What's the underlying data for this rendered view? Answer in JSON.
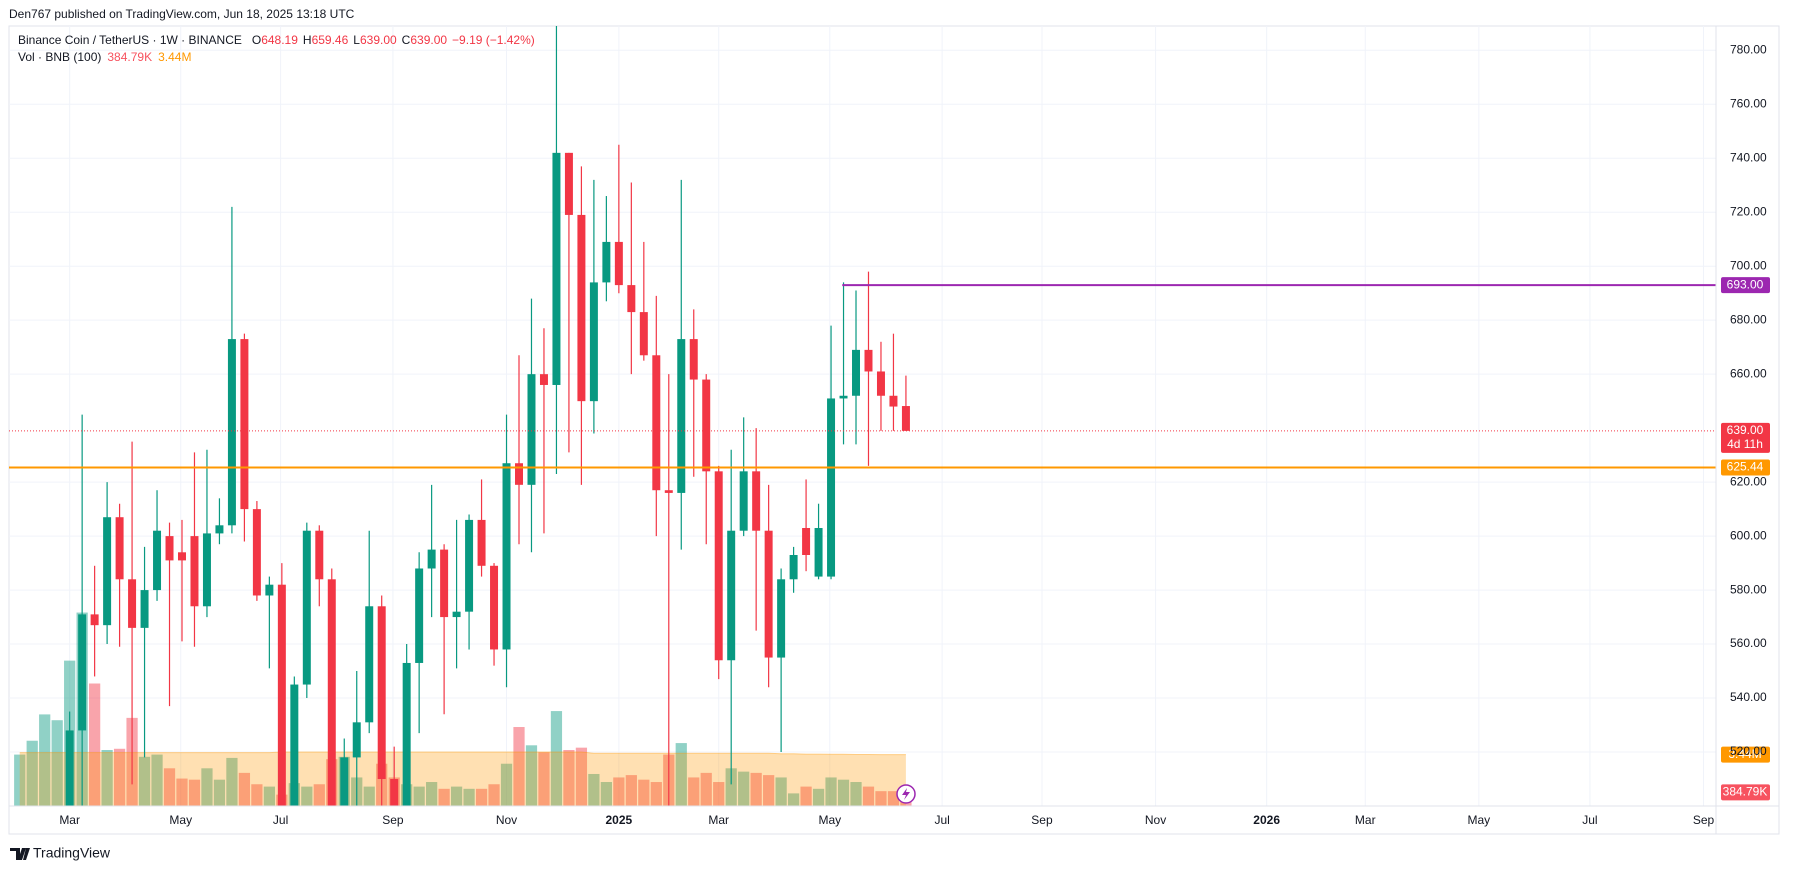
{
  "header": "Den767 published on TradingView.com, Jun 18, 2025 13:18 UTC",
  "footer": "TradingView",
  "chart_data": {
    "type": "candlestick",
    "legend": {
      "symbol": "Binance Coin / TetherUS · 1W · BINANCE",
      "ohlc_letters": [
        "O",
        "H",
        "L",
        "C"
      ],
      "ohlc_labels": [
        "648.19",
        "659.46",
        "639.00",
        "639.00"
      ],
      "change": "−9.19 (−1.42%)",
      "volume_title": "Vol · BNB (100)"
    },
    "ohlc": [
      null,
      null,
      null,
      null,
      [
        500,
        535,
        490,
        528
      ],
      [
        528,
        645,
        500,
        571
      ],
      [
        571,
        589,
        548,
        567
      ],
      [
        567,
        620,
        560,
        607
      ],
      [
        607,
        612,
        559,
        584
      ],
      [
        584,
        635,
        508,
        566
      ],
      [
        566,
        596,
        518,
        580
      ],
      [
        580,
        617,
        576,
        602
      ],
      [
        600,
        605,
        537,
        591
      ],
      [
        594,
        606,
        561,
        591
      ],
      [
        600,
        631,
        559,
        574
      ],
      [
        574,
        632,
        570,
        601
      ],
      [
        601,
        614,
        597,
        604
      ],
      [
        604,
        722,
        601,
        673
      ],
      [
        673,
        675,
        598,
        610
      ],
      [
        610,
        613,
        576,
        578
      ],
      [
        578,
        585,
        551,
        582
      ],
      [
        582,
        590,
        470,
        498
      ],
      [
        498,
        548,
        460,
        545
      ],
      [
        545,
        605,
        540,
        602
      ],
      [
        602,
        604,
        574,
        584
      ],
      [
        584,
        588,
        460,
        495
      ],
      [
        495,
        525,
        480,
        518
      ],
      [
        518,
        550,
        500,
        531
      ],
      [
        531,
        602,
        527,
        574
      ],
      [
        574,
        578,
        490,
        510
      ],
      [
        510,
        522,
        490,
        500
      ],
      [
        500,
        560,
        495,
        553
      ],
      [
        553,
        594,
        527,
        588
      ],
      [
        588,
        619,
        570,
        595
      ],
      [
        595,
        597,
        534,
        570
      ],
      [
        570,
        606,
        551,
        572
      ],
      [
        572,
        608,
        558,
        606
      ],
      [
        606,
        621,
        585,
        589
      ],
      [
        589,
        590,
        552,
        558
      ],
      [
        558,
        645,
        544,
        627
      ],
      [
        627,
        667,
        597,
        619
      ],
      [
        619,
        688,
        594,
        660
      ],
      [
        660,
        677,
        601,
        656
      ],
      [
        656,
        793,
        623,
        742
      ],
      [
        742,
        742,
        631,
        719
      ],
      [
        719,
        737,
        619,
        650
      ],
      [
        650,
        732,
        638,
        694
      ],
      [
        694,
        726,
        687,
        709
      ],
      [
        709,
        745,
        690,
        693
      ],
      [
        693,
        731,
        660,
        683
      ],
      [
        683,
        709,
        665,
        667
      ],
      [
        667,
        689,
        600,
        617
      ],
      [
        617,
        660,
        500,
        616
      ],
      [
        616,
        732,
        595,
        673
      ],
      [
        673,
        684,
        622,
        658
      ],
      [
        658,
        660,
        597,
        624
      ],
      [
        624,
        626,
        547,
        554
      ],
      [
        554,
        632,
        508,
        602
      ],
      [
        602,
        644,
        600,
        624
      ],
      [
        624,
        640,
        565,
        602
      ],
      [
        602,
        619,
        544,
        555
      ],
      [
        555,
        588,
        520,
        584
      ],
      [
        584,
        596,
        579,
        593
      ],
      [
        603,
        621,
        587,
        593
      ],
      [
        585,
        612,
        584,
        603
      ],
      [
        585,
        678,
        584,
        651
      ],
      [
        651,
        694,
        634,
        652
      ],
      [
        652,
        691,
        634,
        669
      ],
      [
        669,
        698,
        626,
        661
      ],
      [
        661,
        672,
        639,
        652
      ],
      [
        652,
        675,
        639,
        648
      ],
      [
        648.19,
        659.46,
        639,
        639
      ]
    ],
    "volume": [
      3.44,
      4.56,
      6.69,
      6.22,
      11.04,
      14.93,
      9.19,
      3.81,
      3.91,
      6.41,
      3.26,
      3.44,
      2.33,
      1.5,
      1.41,
      2.33,
      1.41,
      3.17,
      1.96,
      1.04,
      0.85,
      0.2,
      1.13,
      0.85,
      1.04,
      3.07,
      3.26,
      1.59,
      0.85,
      2.7,
      1.59,
      1.04,
      0.85,
      1.22,
      0.67,
      0.85,
      0.67,
      0.67,
      1.04,
      2.7,
      5.67,
      4.19,
      3.63,
      6.96,
      3.81,
      4.0,
      1.87,
      1.22,
      1.59,
      1.78,
      1.41,
      1.22,
      3.44,
      4.37,
      1.59,
      1.96,
      1.22,
      2.33,
      2.06,
      1.96,
      1.78,
      1.59,
      0.3,
      0.85,
      0.67,
      1.59,
      1.41,
      1.22,
      0.85,
      0.48,
      0.48,
      0.38479
    ],
    "volume_ma": [
      3.6,
      3.6,
      3.6,
      3.6,
      3.6,
      3.6,
      3.6,
      3.6,
      3.6,
      3.6,
      3.6,
      3.6,
      3.6,
      3.6,
      3.6,
      3.6,
      3.6,
      3.6,
      3.6,
      3.6,
      3.6,
      3.65,
      3.65,
      3.65,
      3.65,
      3.65,
      3.65,
      3.65,
      3.65,
      3.65,
      3.65,
      3.65,
      3.65,
      3.65,
      3.65,
      3.65,
      3.65,
      3.65,
      3.65,
      3.65,
      3.65,
      3.65,
      3.65,
      3.65,
      3.65,
      3.65,
      3.55,
      3.55,
      3.55,
      3.55,
      3.55,
      3.55,
      3.55,
      3.55,
      3.55,
      3.55,
      3.55,
      3.55,
      3.55,
      3.55,
      3.55,
      3.5,
      3.5,
      3.48,
      3.48,
      3.46,
      3.46,
      3.45,
      3.45,
      3.44,
      3.44,
      3.44
    ],
    "volume_label": "384.79K",
    "volume_ma_label": "3.44M",
    "volume_lim": [
      -0.72,
      15.46
    ],
    "colors": {
      "up": "#089981",
      "down": "#f23645",
      "ma": "#ff9800",
      "volume_label": "#f7525f",
      "ma_label": "#ff9800"
    },
    "xlim": [
      -0.86,
      135.9
    ],
    "xticks": [
      {
        "value": 4,
        "label": "Mar"
      },
      {
        "value": 12.9,
        "label": "May"
      },
      {
        "value": 20.9,
        "label": "Jul"
      },
      {
        "value": 29.9,
        "label": "Sep"
      },
      {
        "value": 39,
        "label": "Nov"
      },
      {
        "value": 48,
        "label": "2025"
      },
      {
        "value": 56,
        "label": "Mar"
      },
      {
        "value": 64.9,
        "label": "May"
      },
      {
        "value": 73.9,
        "label": "Jul"
      },
      {
        "value": 81.9,
        "label": "Sep"
      },
      {
        "value": 91,
        "label": "Nov"
      },
      {
        "value": 99.9,
        "label": "2026"
      },
      {
        "value": 107.8,
        "label": "Mar"
      },
      {
        "value": 116.9,
        "label": "May"
      },
      {
        "value": 125.8,
        "label": "Jul"
      },
      {
        "value": 134.9,
        "label": "Sep"
      }
    ],
    "ylim": [
      500,
      789
    ],
    "yticks": [
      {
        "value": 520,
        "label": "520.00"
      },
      {
        "value": 540,
        "label": "540.00"
      },
      {
        "value": 560,
        "label": "560.00"
      },
      {
        "value": 580,
        "label": "580.00"
      },
      {
        "value": 600,
        "label": "600.00"
      },
      {
        "value": 620,
        "label": "620.00"
      },
      {
        "value": 660,
        "label": "660.00"
      },
      {
        "value": 680,
        "label": "680.00"
      },
      {
        "value": 700,
        "label": "700.00"
      },
      {
        "value": 720,
        "label": "720.00"
      },
      {
        "value": 740,
        "label": "740.00"
      },
      {
        "value": 760,
        "label": "760.00"
      },
      {
        "value": 780,
        "label": "780.00"
      }
    ],
    "price_lines": [
      {
        "value": 693,
        "label": "693.00",
        "color": "#9c27b0",
        "start": 65.9,
        "style": "solid"
      },
      {
        "value": 639,
        "label": "639.00",
        "sublabel": "4d 11h",
        "color": "#f23645",
        "start": -0.86,
        "style": "dotted"
      },
      {
        "value": 625.44,
        "label": "625.44",
        "color": "#ff9800",
        "start": -0.86,
        "style": "solid"
      }
    ],
    "grid": true
  }
}
